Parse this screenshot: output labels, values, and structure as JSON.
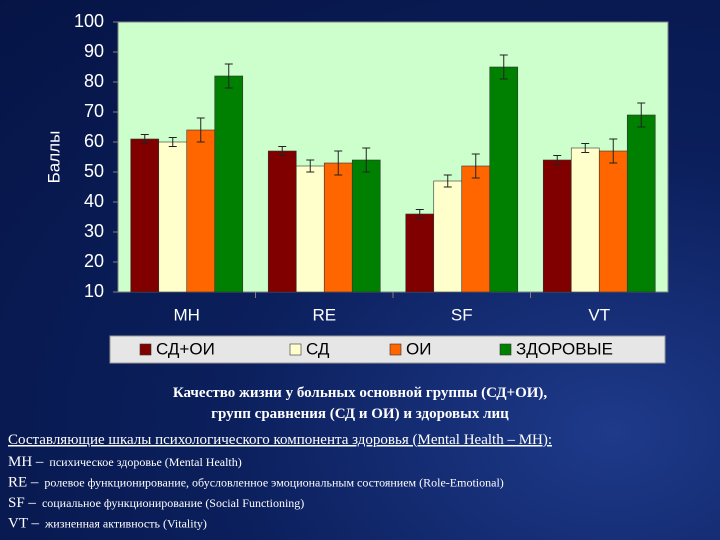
{
  "chart_data": {
    "type": "bar",
    "y_label": "Баллы",
    "categories": [
      "MH",
      "RE",
      "SF",
      "VT"
    ],
    "series": [
      {
        "name": "СД+ОИ",
        "color": "#800000",
        "values": [
          61,
          57,
          36,
          54
        ],
        "errors": [
          1.5,
          1.5,
          1.5,
          1.5
        ]
      },
      {
        "name": "СД",
        "color": "#ffffcc",
        "values": [
          60,
          52,
          47,
          58
        ],
        "errors": [
          1.5,
          2,
          2,
          1.5
        ]
      },
      {
        "name": "ОИ",
        "color": "#ff6600",
        "values": [
          64,
          53,
          52,
          57
        ],
        "errors": [
          4,
          4,
          4,
          4
        ]
      },
      {
        "name": "ЗДОРОВЫЕ",
        "color": "#008000",
        "values": [
          82,
          54,
          85,
          69
        ],
        "errors": [
          4,
          4,
          4,
          4
        ]
      }
    ],
    "ylim": [
      10,
      100
    ],
    "yticks": [
      10,
      20,
      30,
      40,
      50,
      60,
      70,
      80,
      90,
      100
    ],
    "grid": false,
    "legend": "bottom",
    "plot_background": "#ccffcc"
  },
  "caption": {
    "lines": [
      "Качество жизни у больных основной группы (СД+ОИ),",
      "групп сравнения (СД и ОИ) и здоровых лиц"
    ]
  },
  "notes": {
    "heading": "Составляющие шкалы психологического компонента здоровья (Mental Health – MH):",
    "items": [
      {
        "abbr": "MH –",
        "text": "психическое здоровье (Mental Health)"
      },
      {
        "abbr": "RE –",
        "text": "ролевое функционирование, обусловленное эмоциональным состоянием (Role-Emotional)"
      },
      {
        "abbr": "SF –",
        "text": "социальное функционирование (Social Functioning)"
      },
      {
        "abbr": "VT –",
        "text": "жизненная активность (Vitality)"
      }
    ]
  }
}
